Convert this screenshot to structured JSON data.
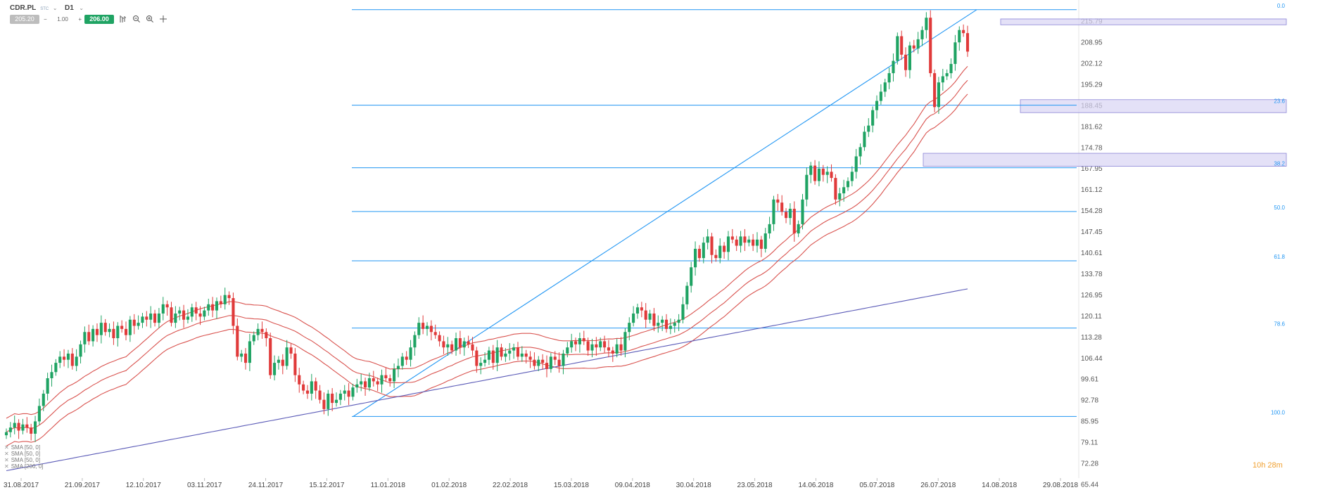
{
  "toolbar": {
    "symbol": "CDR.PL",
    "symbol_sub": "STC",
    "caret": "⌄",
    "timeframe": "D1",
    "tf_caret": "⌄",
    "bid": "205.20",
    "qty_minus": "−",
    "qty": "1.00",
    "qty_plus": "+",
    "ask": "206.00",
    "icons": [
      "bar-style-icon",
      "zoom-out-icon",
      "zoom-in-icon",
      "crosshair-icon"
    ]
  },
  "indicators": [
    {
      "label": "SMA [50, 0]"
    },
    {
      "label": "SMA [50, 0]"
    },
    {
      "label": "SMA [50, 0]"
    },
    {
      "label": "SMA [200, 0]"
    }
  ],
  "timer": "10h 28m",
  "colors": {
    "up": "#1fa363",
    "down": "#e03a3a",
    "fib": "#2196f3",
    "sma_red": "#d9534f",
    "sma_blue": "#5c5cb8",
    "zone": "#d8d4f4"
  },
  "chart_data": {
    "type": "candlestick",
    "price_axis_ticks": [
      215.79,
      208.95,
      202.12,
      195.29,
      188.45,
      181.62,
      174.78,
      167.95,
      161.12,
      154.28,
      147.45,
      140.61,
      133.78,
      126.95,
      120.11,
      113.28,
      106.44,
      99.61,
      92.78,
      85.95,
      79.11,
      72.28,
      65.44
    ],
    "date_axis_ticks": [
      "31.08.2017",
      "21.09.2017",
      "12.10.2017",
      "03.11.2017",
      "24.11.2017",
      "15.12.2017",
      "11.01.2018",
      "01.02.2018",
      "22.02.2018",
      "15.03.2018",
      "09.04.2018",
      "30.04.2018",
      "23.05.2018",
      "14.06.2018",
      "05.07.2018",
      "26.07.2018",
      "14.08.2018",
      "29.08.2018"
    ],
    "fib_levels": [
      {
        "label": "0.0",
        "price": 219.6
      },
      {
        "label": "23.6",
        "price": 188.6
      },
      {
        "label": "38.2",
        "price": 168.3
      },
      {
        "label": "50.0",
        "price": 154.1
      },
      {
        "label": "61.8",
        "price": 138.1
      },
      {
        "label": "78.6",
        "price": 116.3
      },
      {
        "label": "100.0",
        "price": 87.6
      }
    ],
    "y_range": [
      65.44,
      221.5
    ],
    "series_note": "daily OHLC, CDR.PL",
    "closes": [
      82.5,
      84,
      85.5,
      83,
      85,
      84,
      82,
      86,
      91,
      95,
      100,
      102,
      105,
      107,
      106,
      108,
      104,
      107,
      111,
      115,
      112,
      116,
      114,
      118,
      115,
      116,
      113,
      117,
      116,
      114,
      119,
      117,
      118,
      120,
      119,
      121,
      118,
      121,
      124,
      123,
      118,
      121,
      122,
      119,
      120,
      123,
      121,
      120,
      122,
      124,
      122,
      125,
      124,
      127,
      126,
      117,
      107,
      108,
      105,
      112,
      114,
      116,
      115,
      113,
      101,
      105,
      106,
      104,
      110,
      108,
      101,
      98,
      96,
      95,
      99,
      96,
      93,
      90,
      95,
      92,
      93,
      95,
      96,
      94,
      97,
      98,
      99,
      97,
      100,
      99,
      98,
      101,
      100,
      99,
      103,
      104,
      107,
      106,
      110,
      114,
      118,
      116,
      117,
      115,
      114,
      112,
      110,
      111,
      109,
      113,
      110,
      112,
      111,
      109,
      104,
      105,
      106,
      109,
      105,
      110,
      107,
      108,
      109,
      110,
      107,
      108,
      107,
      106,
      104,
      106,
      105,
      103,
      107,
      106,
      104,
      108,
      110,
      112,
      111,
      113,
      112,
      109,
      111,
      110,
      112,
      110,
      109,
      108,
      111,
      109,
      115,
      118,
      121,
      123,
      122,
      119,
      121,
      117,
      118,
      119,
      116,
      117,
      118,
      119,
      124,
      130,
      136,
      142,
      139,
      144,
      146,
      140,
      139,
      143,
      141,
      146,
      145,
      143,
      146,
      144,
      145,
      143,
      145,
      142,
      147,
      150,
      158,
      157,
      154,
      152,
      155,
      147,
      150,
      158,
      166,
      169,
      164,
      168,
      166,
      167,
      165,
      158,
      160,
      162,
      164,
      167,
      172,
      175,
      180,
      182,
      187,
      190,
      193,
      196,
      199,
      203,
      211,
      205,
      200,
      208,
      207,
      210,
      213,
      217,
      199,
      188,
      196,
      198,
      199,
      202,
      209,
      213,
      212,
      206
    ]
  }
}
